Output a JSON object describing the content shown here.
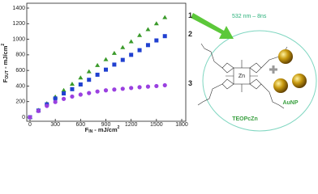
{
  "chart_data": {
    "type": "scatter",
    "x": [
      0,
      100,
      200,
      300,
      400,
      500,
      600,
      700,
      800,
      900,
      1000,
      1100,
      1200,
      1300,
      1400,
      1500,
      1600
    ],
    "series": [
      {
        "name": "1",
        "color": "#3a9a2a",
        "marker": "triangle",
        "values": [
          0,
          90,
          175,
          260,
          345,
          425,
          505,
          585,
          665,
          740,
          820,
          895,
          970,
          1050,
          1125,
          1200,
          1280
        ]
      },
      {
        "name": "2",
        "color": "#2040d0",
        "marker": "square",
        "values": [
          0,
          85,
          165,
          240,
          305,
          360,
          420,
          480,
          545,
          610,
          675,
          735,
          800,
          860,
          925,
          985,
          1040
        ]
      },
      {
        "name": "3",
        "color": "#9a40e0",
        "marker": "circle",
        "values": [
          0,
          80,
          145,
          195,
          235,
          265,
          290,
          310,
          330,
          345,
          355,
          365,
          375,
          385,
          393,
          400,
          410
        ]
      }
    ],
    "x_label": {
      "base": "F",
      "sub": "IN",
      "rest": " - mJ/cm",
      "sup": "2"
    },
    "y_label": {
      "base": "F",
      "sub": "OUT",
      "rest": " - mJ/cm",
      "sup": "2"
    },
    "xlim": [
      0,
      1800
    ],
    "xticks": [
      0,
      300,
      600,
      900,
      1200,
      1500,
      1800
    ],
    "ylim": [
      0,
      1400
    ],
    "yticks": [
      0,
      200,
      400,
      600,
      800,
      1000,
      1200,
      1400
    ]
  },
  "diagram": {
    "laser": "532 nm – 8ns",
    "molecule": "TEOPcZn",
    "particle": "AuNP"
  }
}
